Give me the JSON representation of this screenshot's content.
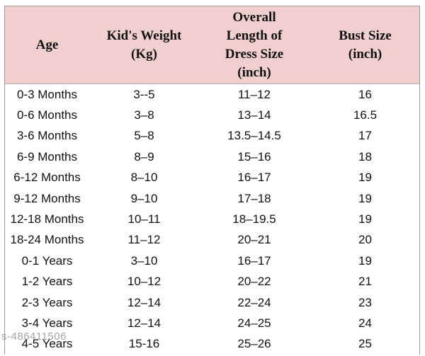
{
  "headers": {
    "age": [
      "Age"
    ],
    "weight": [
      "Kid's Weight",
      "(Kg)"
    ],
    "length": [
      "Overall",
      "Length of",
      "Dress Size",
      "(inch)"
    ],
    "bust": [
      "Bust Size",
      "(inch)"
    ]
  },
  "rows": [
    [
      "0-3 Months",
      "3--5",
      "11–12",
      "16"
    ],
    [
      "0-6 Months",
      "3–8",
      "13–14",
      "16.5"
    ],
    [
      "3-6 Months",
      "5–8",
      "13.5–14.5",
      "17"
    ],
    [
      "6-9 Months",
      "8–9",
      "15–16",
      "18"
    ],
    [
      "6-12 Months",
      "8–10",
      "16–17",
      "19"
    ],
    [
      "9-12 Months",
      "9–10",
      "17–18",
      "19"
    ],
    [
      "12-18 Months",
      "10–11",
      "18–19.5",
      "19"
    ],
    [
      "18-24 Months",
      "11–12",
      "20–21",
      "20"
    ],
    [
      "0-1 Years",
      "3–10",
      "16–17",
      "19"
    ],
    [
      "1-2 Years",
      "10–12",
      "20–22",
      "21"
    ],
    [
      "2-3 Years",
      "12–14",
      "22–24",
      "23"
    ],
    [
      "3-4 Years",
      "12–14",
      "24–25",
      "24"
    ],
    [
      "4-5 Years",
      "15-16",
      "25–26",
      "25"
    ]
  ],
  "watermark": "s-486411506",
  "colors": {
    "header_bg": "#f2cfcf",
    "border": "#9a9a9a"
  }
}
